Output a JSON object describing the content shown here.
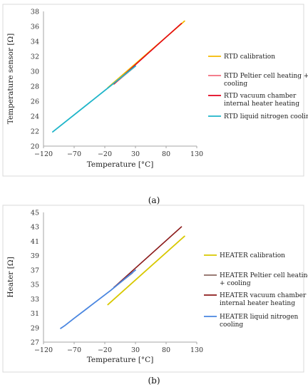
{
  "chart_data": [
    {
      "type": "line",
      "panel_label": "(a)",
      "xlabel": "Temperature  [°C]",
      "ylabel": "Temperature sensor  [Ω]",
      "xlim": [
        -120,
        130
      ],
      "ylim": [
        20,
        38
      ],
      "xticks": [
        -120,
        -70,
        -20,
        30,
        80,
        130
      ],
      "yticks": [
        20,
        22,
        24,
        26,
        28,
        30,
        32,
        34,
        36,
        38
      ],
      "xtick_labels": [
        "−120",
        "−70",
        "−20",
        "30",
        "80",
        "130"
      ],
      "ytick_labels": [
        "20",
        "22",
        "24",
        "26",
        "28",
        "30",
        "32",
        "34",
        "36",
        "38"
      ],
      "grid": false,
      "legend_position": "right",
      "series": [
        {
          "name": "RTD calibration",
          "color": "#f5b800",
          "x": [
            -15,
            110
          ],
          "y": [
            27.8,
            36.7
          ]
        },
        {
          "name": "RTD Peltier cell heating + cooling",
          "color": "#f26d7d",
          "x": [
            -5,
            30
          ],
          "y": [
            28.3,
            30.7
          ]
        },
        {
          "name": "RTD vacuum chamber internal heater heating",
          "color": "#e3001b",
          "x": [
            -5,
            105
          ],
          "y": [
            28.3,
            36.4
          ]
        },
        {
          "name": "RTD liquid nitrogen cooling",
          "color": "#1fb5c9",
          "x": [
            -105,
            30
          ],
          "y": [
            21.9,
            30.7
          ]
        }
      ]
    },
    {
      "type": "line",
      "panel_label": "(b)",
      "xlabel": "Temperature  [°C]",
      "ylabel": "Heater  [Ω]",
      "xlim": [
        -120,
        130
      ],
      "ylim": [
        27,
        45
      ],
      "xticks": [
        -120,
        -70,
        -20,
        30,
        80,
        130
      ],
      "yticks": [
        27,
        29,
        31,
        33,
        35,
        37,
        39,
        41,
        43,
        45
      ],
      "xtick_labels": [
        "−120",
        "−70",
        "−20",
        "30",
        "80",
        "130"
      ],
      "ytick_labels": [
        "27",
        "29",
        "31",
        "33",
        "35",
        "37",
        "39",
        "41",
        "43",
        "45"
      ],
      "grid": false,
      "legend_position": "right",
      "series": [
        {
          "name": "HEATER calibration",
          "color": "#d8c800",
          "x": [
            -15,
            110
          ],
          "y": [
            32.2,
            41.7
          ]
        },
        {
          "name": "HEATER Peltier cell heating + cooling",
          "color": "#8c6a62",
          "x": [
            -5,
            25
          ],
          "y": [
            34.6,
            36.6
          ]
        },
        {
          "name": "HEATER vacuum chamber internal heater heating",
          "color": "#8b1a1a",
          "x": [
            -5,
            105
          ],
          "y": [
            34.6,
            43.0
          ]
        },
        {
          "name": "HEATER liquid nitrogen cooling",
          "color": "#4a86e0",
          "x": [
            -92,
            -85,
            -70,
            -50,
            -30,
            -10,
            10,
            30
          ],
          "y": [
            28.9,
            29.3,
            30.3,
            31.6,
            32.9,
            34.2,
            35.6,
            37.0
          ]
        }
      ]
    }
  ]
}
